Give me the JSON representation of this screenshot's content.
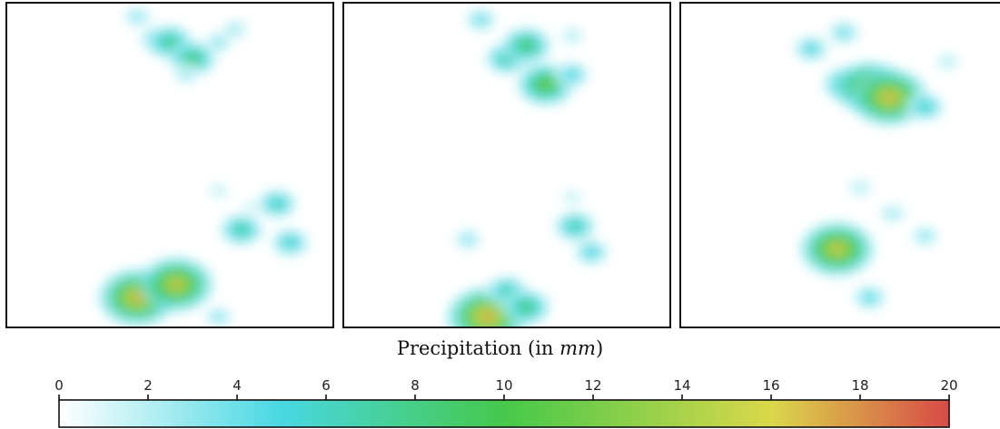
{
  "chart_data": {
    "type": "heatmap",
    "panels": 3,
    "colorbar": {
      "title": "Precipitation (in ",
      "title_unit": "mm",
      "title_end": ")",
      "min": 0,
      "max": 20,
      "ticks": [
        "0",
        "2",
        "4",
        "6",
        "8",
        "10",
        "12",
        "14",
        "16",
        "18",
        "20"
      ],
      "colors": [
        "#ffffff",
        "#48d8e2",
        "#46c84a",
        "#dad84a",
        "#d84a48"
      ],
      "color_stops": [
        0,
        5,
        10,
        16,
        20
      ]
    },
    "fields": [
      {
        "name": "",
        "cells": [
          {
            "x": 0.46,
            "y": 0.11,
            "v": 5.0
          },
          {
            "x": 0.5,
            "y": 0.12,
            "v": 8.5
          },
          {
            "x": 0.57,
            "y": 0.17,
            "v": 9.0
          },
          {
            "x": 0.65,
            "y": 0.12,
            "v": 3.0
          },
          {
            "x": 0.7,
            "y": 0.08,
            "v": 2.5
          },
          {
            "x": 0.4,
            "y": 0.04,
            "v": 3.0
          },
          {
            "x": 0.55,
            "y": 0.22,
            "v": 2.5
          },
          {
            "x": 0.65,
            "y": 0.58,
            "v": 1.5
          },
          {
            "x": 0.75,
            "y": 0.63,
            "v": 1.2
          },
          {
            "x": 0.72,
            "y": 0.7,
            "v": 7.5
          },
          {
            "x": 0.83,
            "y": 0.62,
            "v": 6.5
          },
          {
            "x": 0.87,
            "y": 0.74,
            "v": 6.0
          },
          {
            "x": 0.4,
            "y": 0.91,
            "v": 18.0
          },
          {
            "x": 0.52,
            "y": 0.87,
            "v": 17.0
          },
          {
            "x": 0.65,
            "y": 0.97,
            "v": 3.0
          }
        ]
      },
      {
        "name": "",
        "cells": [
          {
            "x": 0.5,
            "y": 0.17,
            "v": 7.5
          },
          {
            "x": 0.56,
            "y": 0.13,
            "v": 9.5
          },
          {
            "x": 0.62,
            "y": 0.25,
            "v": 12.0
          },
          {
            "x": 0.7,
            "y": 0.22,
            "v": 5.0
          },
          {
            "x": 0.42,
            "y": 0.05,
            "v": 4.0
          },
          {
            "x": 0.7,
            "y": 0.1,
            "v": 2.0
          },
          {
            "x": 0.7,
            "y": 0.6,
            "v": 1.5
          },
          {
            "x": 0.71,
            "y": 0.69,
            "v": 7.0
          },
          {
            "x": 0.76,
            "y": 0.77,
            "v": 5.0
          },
          {
            "x": 0.38,
            "y": 0.73,
            "v": 3.0
          },
          {
            "x": 0.44,
            "y": 0.97,
            "v": 19.0
          },
          {
            "x": 0.5,
            "y": 0.89,
            "v": 7.0
          },
          {
            "x": 0.56,
            "y": 0.94,
            "v": 9.0
          }
        ]
      },
      {
        "name": "",
        "cells": [
          {
            "x": 0.5,
            "y": 0.09,
            "v": 4.0
          },
          {
            "x": 0.4,
            "y": 0.14,
            "v": 5.0
          },
          {
            "x": 0.51,
            "y": 0.25,
            "v": 9.0
          },
          {
            "x": 0.58,
            "y": 0.26,
            "v": 16.0
          },
          {
            "x": 0.64,
            "y": 0.29,
            "v": 18.0
          },
          {
            "x": 0.75,
            "y": 0.32,
            "v": 6.0
          },
          {
            "x": 0.82,
            "y": 0.18,
            "v": 2.0
          },
          {
            "x": 0.55,
            "y": 0.57,
            "v": 2.0
          },
          {
            "x": 0.65,
            "y": 0.65,
            "v": 2.5
          },
          {
            "x": 0.75,
            "y": 0.72,
            "v": 3.0
          },
          {
            "x": 0.48,
            "y": 0.76,
            "v": 17.0
          },
          {
            "x": 0.58,
            "y": 0.91,
            "v": 4.5
          }
        ]
      }
    ]
  }
}
